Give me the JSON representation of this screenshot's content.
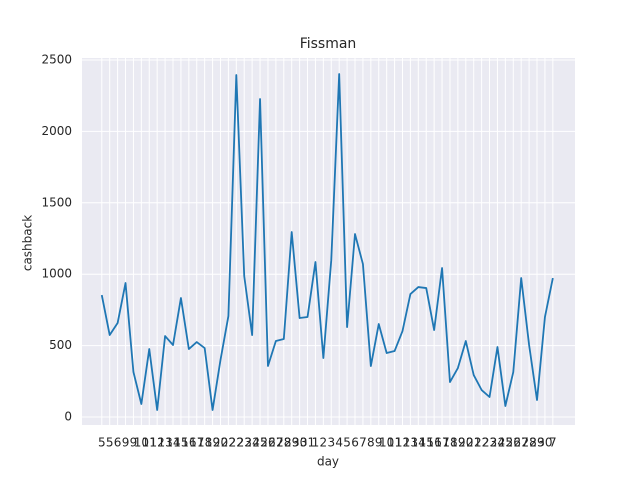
{
  "chart_data": {
    "type": "line",
    "title": "Fissman",
    "x_label": "day",
    "y_label": "cashback",
    "categories": [
      "5",
      "5",
      "6",
      "9",
      "9",
      "10",
      "11",
      "12",
      "13",
      "14",
      "15",
      "16",
      "17",
      "18",
      "19",
      "20",
      "22",
      "22",
      "23",
      "24",
      "25",
      "26",
      "27",
      "28",
      "29",
      "30",
      "31",
      "1",
      "2",
      "3",
      "4",
      "5",
      "6",
      "7",
      "8",
      "9",
      "10",
      "11",
      "12",
      "13",
      "14",
      "15",
      "16",
      "17",
      "18",
      "19",
      "20",
      "21",
      "22",
      "23",
      "24",
      "25",
      "26",
      "27",
      "28",
      "29",
      "30",
      "7"
    ],
    "series": [
      {
        "name": "cashback",
        "color": "#1f77b4",
        "values": [
          854,
          574,
          658,
          938,
          315,
          91,
          476,
          49,
          567,
          504,
          833,
          476,
          525,
          483,
          49,
          399,
          707,
          2395,
          987,
          574,
          2227,
          357,
          532,
          546,
          1295,
          693,
          700,
          1085,
          413,
          1099,
          2402,
          630,
          1281,
          1071,
          357,
          651,
          448,
          462,
          602,
          861,
          910,
          903,
          609,
          1043,
          245,
          343,
          532,
          294,
          189,
          140,
          490,
          77,
          315,
          973,
          504,
          119,
          700,
          973
        ]
      }
    ],
    "ylim": [
      -56,
      2514
    ],
    "yticks": [
      0,
      500,
      1000,
      1500,
      2000,
      2500
    ],
    "grid": true
  }
}
